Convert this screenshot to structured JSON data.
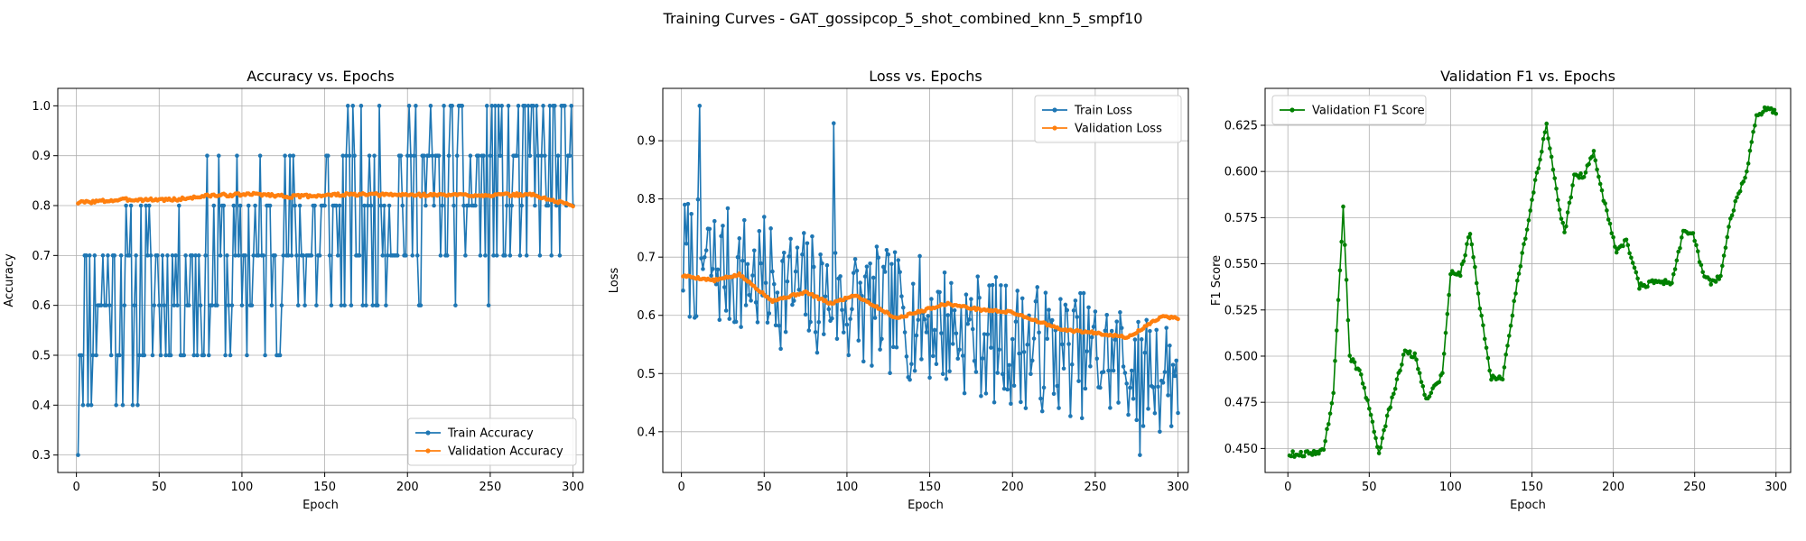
{
  "figure": {
    "suptitle": "Training Curves - GAT_gossipcop_5_shot_combined_knn_5_smpf10"
  },
  "colors": {
    "blue": "#1f77b4",
    "orange": "#ff7f0e",
    "green": "#008000",
    "grid": "#b0b0b0"
  },
  "chart_data": [
    {
      "type": "line",
      "title": "Accuracy vs. Epochs",
      "xlabel": "Epoch",
      "ylabel": "Accuracy",
      "xlim": [
        -11.25,
        306.25
      ],
      "ylim": [
        0.265,
        1.035
      ],
      "xticks": [
        0,
        50,
        100,
        150,
        200,
        250,
        300
      ],
      "yticks": [
        0.3,
        0.4,
        0.5,
        0.6,
        0.7,
        0.8,
        0.9,
        1.0
      ],
      "ytick_labels": [
        "0.3",
        "0.4",
        "0.5",
        "0.6",
        "0.7",
        "0.8",
        "0.9",
        "1.0"
      ],
      "grid": true,
      "legend": "lower right",
      "series": [
        {
          "name": "Train Accuracy",
          "color": "#1f77b4",
          "gen": {
            "start": 1,
            "n": 300,
            "base": [
              [
                1,
                0.6
              ],
              [
                100,
                0.68
              ],
              [
                200,
                0.82
              ],
              [
                300,
                0.85
              ]
            ],
            "amp": 0.2,
            "seed": 11,
            "snap": 0.1,
            "clip": [
              0.3,
              1.0
            ],
            "fixed": [
              [
                1,
                0.3
              ],
              [
                300,
                0.8
              ]
            ]
          }
        },
        {
          "name": "Validation Accuracy",
          "color": "#ff7f0e",
          "gen": {
            "start": 1,
            "n": 300,
            "base": [
              [
                1,
                0.806
              ],
              [
                30,
                0.812
              ],
              [
                60,
                0.812
              ],
              [
                80,
                0.82
              ],
              [
                110,
                0.823
              ],
              [
                130,
                0.818
              ],
              [
                160,
                0.822
              ],
              [
                250,
                0.821
              ],
              [
                275,
                0.822
              ],
              [
                290,
                0.808
              ],
              [
                300,
                0.801
              ]
            ],
            "amp": 0.003,
            "seed": 3
          }
        }
      ]
    },
    {
      "type": "line",
      "title": "Loss vs. Epochs",
      "xlabel": "Epoch",
      "ylabel": "Loss",
      "xlim": [
        -11.25,
        306.25
      ],
      "ylim": [
        0.33,
        0.99
      ],
      "xticks": [
        0,
        50,
        100,
        150,
        200,
        250,
        300
      ],
      "yticks": [
        0.4,
        0.5,
        0.6,
        0.7,
        0.8,
        0.9
      ],
      "ytick_labels": [
        "0.4",
        "0.5",
        "0.6",
        "0.7",
        "0.8",
        "0.9"
      ],
      "grid": true,
      "legend": "upper right",
      "series": [
        {
          "name": "Train Loss",
          "color": "#1f77b4",
          "gen": {
            "start": 1,
            "n": 300,
            "base": [
              [
                1,
                0.7
              ],
              [
                50,
                0.66
              ],
              [
                100,
                0.62
              ],
              [
                150,
                0.59
              ],
              [
                200,
                0.55
              ],
              [
                250,
                0.53
              ],
              [
                300,
                0.5
              ]
            ],
            "amp": 0.11,
            "seed": 7,
            "clip": [
              0.36,
              0.96
            ],
            "fixed": [
              [
                11,
                0.96
              ],
              [
                92,
                0.93
              ],
              [
                277,
                0.36
              ]
            ]
          }
        },
        {
          "name": "Validation Loss",
          "color": "#ff7f0e",
          "gen": {
            "start": 1,
            "n": 300,
            "base": [
              [
                1,
                0.668
              ],
              [
                20,
                0.66
              ],
              [
                35,
                0.67
              ],
              [
                55,
                0.625
              ],
              [
                75,
                0.64
              ],
              [
                90,
                0.62
              ],
              [
                105,
                0.635
              ],
              [
                130,
                0.595
              ],
              [
                160,
                0.62
              ],
              [
                180,
                0.61
              ],
              [
                200,
                0.605
              ],
              [
                230,
                0.575
              ],
              [
                250,
                0.57
              ],
              [
                270,
                0.562
              ],
              [
                290,
                0.598
              ],
              [
                300,
                0.595
              ]
            ],
            "amp": 0.002,
            "seed": 5
          }
        }
      ]
    },
    {
      "type": "line",
      "title": "Validation F1 vs. Epochs",
      "xlabel": "Epoch",
      "ylabel": "F1 Score",
      "xlim": [
        -14,
        309
      ],
      "ylim": [
        0.437,
        0.645
      ],
      "xticks": [
        0,
        50,
        100,
        150,
        200,
        250,
        300
      ],
      "yticks": [
        0.45,
        0.475,
        0.5,
        0.525,
        0.55,
        0.575,
        0.6,
        0.625
      ],
      "ytick_labels": [
        "0.450",
        "0.475",
        "0.500",
        "0.525",
        "0.550",
        "0.575",
        "0.600",
        "0.625"
      ],
      "grid": true,
      "legend": "upper left",
      "series": [
        {
          "name": "Validation F1 Score",
          "color": "#008000",
          "gen": {
            "start": 1,
            "n": 300,
            "base": [
              [
                1,
                0.447
              ],
              [
                10,
                0.447
              ],
              [
                22,
                0.449
              ],
              [
                28,
                0.48
              ],
              [
                34,
                0.58
              ],
              [
                38,
                0.5
              ],
              [
                45,
                0.49
              ],
              [
                56,
                0.448
              ],
              [
                62,
                0.47
              ],
              [
                72,
                0.503
              ],
              [
                78,
                0.5
              ],
              [
                85,
                0.477
              ],
              [
                95,
                0.49
              ],
              [
                100,
                0.545
              ],
              [
                106,
                0.545
              ],
              [
                112,
                0.567
              ],
              [
                118,
                0.527
              ],
              [
                125,
                0.488
              ],
              [
                132,
                0.488
              ],
              [
                140,
                0.535
              ],
              [
                150,
                0.585
              ],
              [
                159,
                0.625
              ],
              [
                165,
                0.59
              ],
              [
                170,
                0.566
              ],
              [
                176,
                0.598
              ],
              [
                182,
                0.598
              ],
              [
                188,
                0.611
              ],
              [
                194,
                0.585
              ],
              [
                202,
                0.557
              ],
              [
                208,
                0.563
              ],
              [
                216,
                0.538
              ],
              [
                226,
                0.54
              ],
              [
                236,
                0.54
              ],
              [
                243,
                0.567
              ],
              [
                249,
                0.567
              ],
              [
                255,
                0.545
              ],
              [
                260,
                0.54
              ],
              [
                266,
                0.543
              ],
              [
                272,
                0.575
              ],
              [
                282,
                0.6
              ],
              [
                288,
                0.63
              ],
              [
                295,
                0.635
              ],
              [
                300,
                0.632
              ]
            ],
            "amp": 0.0015,
            "seed": 9
          }
        }
      ]
    }
  ]
}
